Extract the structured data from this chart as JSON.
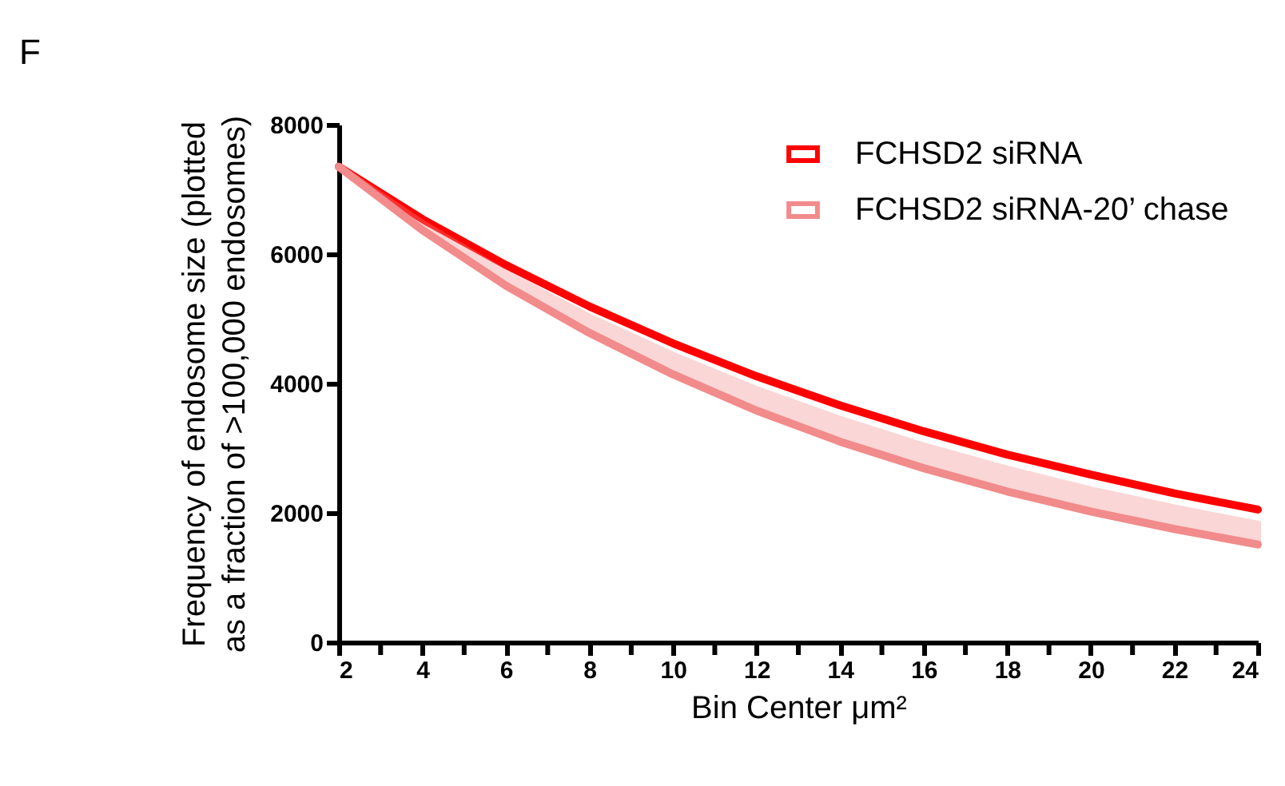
{
  "chart_data": {
    "type": "line",
    "title": "F",
    "xlabel": "Bin Center μm²",
    "ylabel": "Frequency of endosome size (plotted\nas a fraction of >100,000 endosomes)",
    "x": [
      2,
      4,
      6,
      8,
      10,
      12,
      14,
      16,
      18,
      20,
      22,
      24
    ],
    "series": [
      {
        "name": "FCHSD2 siRNA",
        "color": "#ff0000",
        "values": [
          7350,
          6540,
          5830,
          5190,
          4620,
          4110,
          3660,
          3260,
          2900,
          2590,
          2300,
          2050
        ]
      },
      {
        "name": "FCHSD2 siRNA-20’ chase",
        "color": "#f28b8b",
        "values": [
          7350,
          6370,
          5510,
          4780,
          4140,
          3580,
          3100,
          2690,
          2330,
          2020,
          1750,
          1510
        ],
        "lower": [
          7350,
          6370,
          5510,
          4780,
          4140,
          3580,
          3100,
          2690,
          2330,
          2020,
          1750,
          1510
        ],
        "upper": [
          7350,
          6480,
          5710,
          5030,
          4440,
          3910,
          3450,
          3040,
          2680,
          2360,
          2080,
          1830
        ]
      }
    ],
    "xlim": [
      2,
      24
    ],
    "xticks": [
      2,
      {
        "value": 3,
        "label": null
      },
      4,
      {
        "value": 5,
        "label": null
      },
      6,
      {
        "value": 7,
        "label": null
      },
      8,
      {
        "value": 9,
        "label": null
      },
      10,
      {
        "value": 11,
        "label": null
      },
      12,
      {
        "value": 13,
        "label": null
      },
      14,
      {
        "value": 15,
        "label": null
      },
      16,
      {
        "value": 17,
        "label": null
      },
      18,
      {
        "value": 19,
        "label": null
      },
      20,
      {
        "value": 21,
        "label": null
      },
      22,
      {
        "value": 23,
        "label": null
      },
      24
    ],
    "ylim": [
      0,
      8000
    ],
    "yticks": [
      0,
      2000,
      4000,
      6000,
      8000
    ],
    "grid": false,
    "legend": "top right"
  }
}
